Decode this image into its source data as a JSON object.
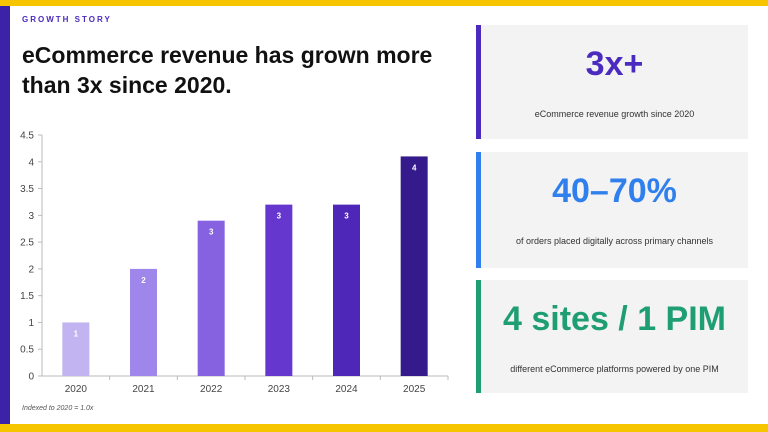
{
  "header": {
    "eyebrow": "GROWTH STORY",
    "title": "eCommerce revenue has grown more than 3x since 2020."
  },
  "footnote": "Indexed to 2020 = 1.0x",
  "colors": {
    "accent_yellow": "#f6c500",
    "brand_purple": "#3c22a6",
    "card_1_accent": "#4b2bbf",
    "card_2_accent": "#2f80ed",
    "card_3_accent": "#1f9d73"
  },
  "stats": [
    {
      "value": "3x+",
      "description": "eCommerce revenue growth since 2020",
      "color": "#4b2bbf"
    },
    {
      "value": "40–70%",
      "description": "of orders placed digitally across primary channels",
      "color": "#2f80ed"
    },
    {
      "value": "4 sites / 1 PIM",
      "description": "different eCommerce platforms powered by one PIM",
      "color": "#1f9d73"
    }
  ],
  "chart_data": {
    "type": "bar",
    "categories": [
      "2020",
      "2021",
      "2022",
      "2023",
      "2024",
      "2025"
    ],
    "values": [
      1.0,
      2.0,
      2.9,
      3.2,
      3.2,
      4.1
    ],
    "data_labels": [
      "1",
      "2",
      "3",
      "3",
      "3",
      "4"
    ],
    "bar_colors": [
      "#c2b4f0",
      "#9f86ea",
      "#8661e0",
      "#6537cf",
      "#4f27b8",
      "#341a8a"
    ],
    "ylim": [
      0,
      4.5
    ],
    "y_ticks": [
      "0",
      "0.5",
      "1",
      "1.5",
      "2",
      "2.5",
      "3",
      "3.5",
      "4",
      "4.5"
    ],
    "grid": false,
    "title": "",
    "xlabel": "",
    "ylabel": ""
  }
}
